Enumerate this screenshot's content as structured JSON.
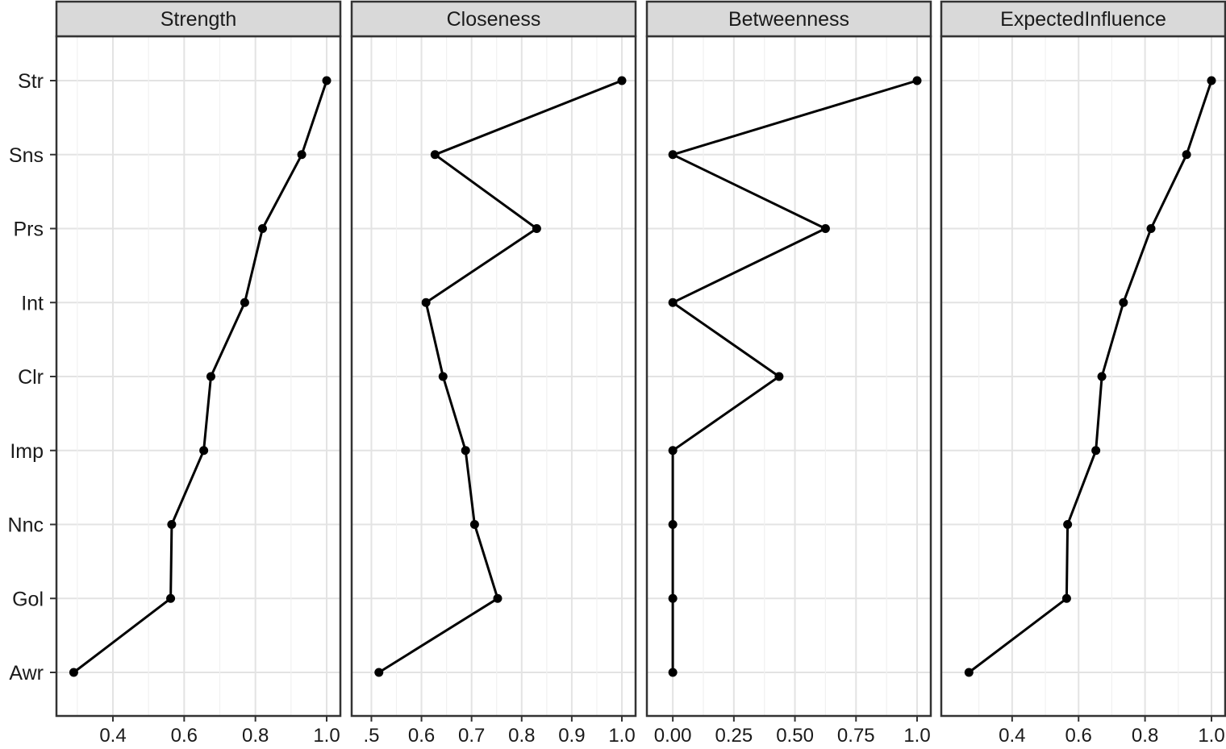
{
  "chart_data": {
    "type": "line",
    "orientation": "horizontal-dotplot",
    "facets_shared_y": true,
    "categories": [
      "Str",
      "Sns",
      "Prs",
      "Int",
      "Clr",
      "Imp",
      "Nnc",
      "Gol",
      "Awr"
    ],
    "grid": true,
    "colors": {
      "line": "#000000",
      "point": "#000000",
      "strip": "#d9d9d9",
      "grid": "#e3e3e3",
      "border": "#333333"
    },
    "panels": [
      {
        "strip_label": "Strength",
        "xlim": [
          0.28,
          1.0
        ],
        "x_ticks": [
          0.4,
          0.6,
          0.8,
          1.0
        ],
        "x_tick_labels": [
          "0.4",
          "0.6",
          "0.8",
          "1.0"
        ],
        "values": [
          1.0,
          0.93,
          0.82,
          0.77,
          0.675,
          0.655,
          0.565,
          0.562,
          0.29
        ]
      },
      {
        "strip_label": "Closeness",
        "xlim": [
          0.488,
          1.0
        ],
        "x_ticks": [
          0.5,
          0.6,
          0.7,
          0.8,
          0.9,
          1.0
        ],
        "x_tick_labels": [
          ".5",
          "0.6",
          "0.7",
          "0.8",
          "0.9",
          "1.0"
        ],
        "values": [
          1.0,
          0.627,
          0.83,
          0.609,
          0.643,
          0.688,
          0.706,
          0.752,
          0.515
        ]
      },
      {
        "strip_label": "Betweenness",
        "xlim": [
          -0.05,
          1.0
        ],
        "x_ticks": [
          0.0,
          0.25,
          0.5,
          0.75,
          1.0
        ],
        "x_tick_labels": [
          "0.00",
          "0.25",
          "0.50",
          "0.75",
          "1.0"
        ],
        "values": [
          1.0,
          0.0,
          0.625,
          0.0,
          0.435,
          0.0,
          0.0,
          0.0,
          0.0
        ]
      },
      {
        "strip_label": "ExpectedInfluence",
        "xlim": [
          0.228,
          1.0
        ],
        "x_ticks": [
          0.4,
          0.6,
          0.8,
          1.0
        ],
        "x_tick_labels": [
          "0.4",
          "0.6",
          "0.8",
          "1.0"
        ],
        "values": [
          1.0,
          0.925,
          0.818,
          0.735,
          0.67,
          0.652,
          0.567,
          0.564,
          0.27
        ]
      }
    ]
  }
}
